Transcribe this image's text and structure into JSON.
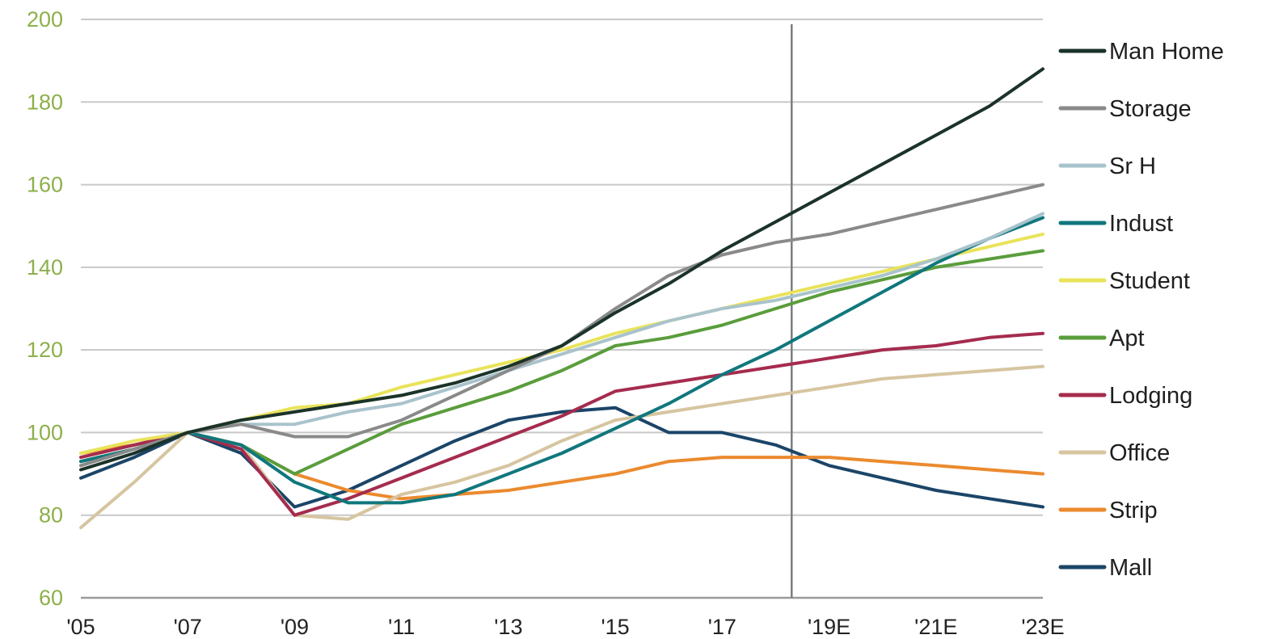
{
  "chart_data": {
    "type": "line",
    "x": [
      2005,
      2006,
      2007,
      2008,
      2009,
      2010,
      2011,
      2012,
      2013,
      2014,
      2015,
      2016,
      2017,
      2018,
      2019,
      2020,
      2021,
      2022,
      2023
    ],
    "xticks": [
      {
        "value": 2005,
        "label": "'05"
      },
      {
        "value": 2007,
        "label": "'07"
      },
      {
        "value": 2009,
        "label": "'09"
      },
      {
        "value": 2011,
        "label": "'11"
      },
      {
        "value": 2013,
        "label": "'13"
      },
      {
        "value": 2015,
        "label": "'15"
      },
      {
        "value": 2017,
        "label": "'17"
      },
      {
        "value": 2019,
        "label": "'19E"
      },
      {
        "value": 2021,
        "label": "'21E"
      },
      {
        "value": 2023,
        "label": "'23E"
      }
    ],
    "yticks": [
      60,
      80,
      100,
      120,
      140,
      160,
      180,
      200
    ],
    "xlim": [
      2005,
      2023
    ],
    "ylim": [
      60,
      200
    ],
    "forecast_marker_x": 2018.3,
    "grid": true,
    "legend_position": "right",
    "ytick_color": "#8db04a",
    "series": [
      {
        "name": "Man Home",
        "color": "#1b3329",
        "values": [
          91,
          95,
          100,
          103,
          105,
          107,
          109,
          112,
          116,
          121,
          129,
          136,
          144,
          151,
          158,
          165,
          172,
          179,
          188
        ]
      },
      {
        "name": "Storage",
        "color": "#8a8a8a",
        "values": [
          92,
          96,
          100,
          102,
          99,
          99,
          103,
          109,
          115,
          121,
          130,
          138,
          143,
          146,
          148,
          151,
          154,
          157,
          160
        ]
      },
      {
        "name": "Sr H",
        "color": "#a9c3cc",
        "values": [
          92,
          96,
          100,
          102,
          102,
          105,
          107,
          111,
          115,
          119,
          123,
          127,
          130,
          132,
          135,
          138,
          142,
          147,
          153
        ]
      },
      {
        "name": "Indust",
        "color": "#10777d",
        "values": [
          93,
          96,
          100,
          97,
          88,
          83,
          83,
          85,
          90,
          95,
          101,
          107,
          114,
          120,
          127,
          134,
          141,
          147,
          152
        ]
      },
      {
        "name": "Student",
        "color": "#e9e35b",
        "values": [
          95,
          98,
          100,
          103,
          106,
          107,
          111,
          114,
          117,
          120,
          124,
          127,
          130,
          133,
          136,
          139,
          142,
          145,
          148
        ]
      },
      {
        "name": "Apt",
        "color": "#5a9d3c",
        "values": [
          93,
          96,
          100,
          97,
          90,
          96,
          102,
          106,
          110,
          115,
          121,
          123,
          126,
          130,
          134,
          137,
          140,
          142,
          144
        ]
      },
      {
        "name": "Lodging",
        "color": "#a52c4e",
        "values": [
          94,
          97,
          100,
          96,
          80,
          84,
          89,
          94,
          99,
          104,
          110,
          112,
          114,
          116,
          118,
          120,
          121,
          123,
          124
        ]
      },
      {
        "name": "Office",
        "color": "#d6c5a0",
        "values": [
          77,
          88,
          100,
          97,
          80,
          79,
          85,
          88,
          92,
          98,
          103,
          105,
          107,
          109,
          111,
          113,
          114,
          115,
          116
        ]
      },
      {
        "name": "Strip",
        "color": "#eb8a2e",
        "values": [
          95,
          97,
          100,
          97,
          90,
          86,
          84,
          85,
          86,
          88,
          90,
          93,
          94,
          94,
          94,
          93,
          92,
          91,
          90
        ]
      },
      {
        "name": "Mall",
        "color": "#1b4568",
        "values": [
          89,
          94,
          100,
          95,
          82,
          86,
          92,
          98,
          103,
          105,
          106,
          100,
          100,
          97,
          92,
          89,
          86,
          84,
          82
        ]
      }
    ]
  }
}
